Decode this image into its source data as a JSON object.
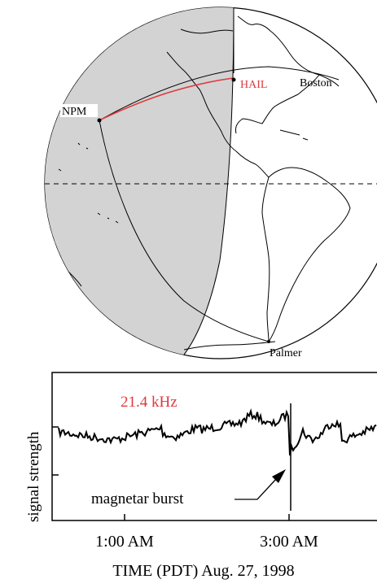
{
  "globe": {
    "labels": {
      "npm": "NPM",
      "hail": "HAIL",
      "boston": "Boston",
      "palmer": "Palmer"
    },
    "colors": {
      "night_side": "#d3d3d3",
      "hail_path": "#e0393e",
      "outline": "#000000"
    }
  },
  "plot": {
    "frequency_label": "21.4 kHz",
    "frequency_color": "#e0393e",
    "annotation": "magnetar burst",
    "ylabel": "signal strength",
    "xlabel": "TIME (PDT) Aug. 27, 1998",
    "xticks": [
      "1:00 AM",
      "3:00 AM"
    ]
  }
}
